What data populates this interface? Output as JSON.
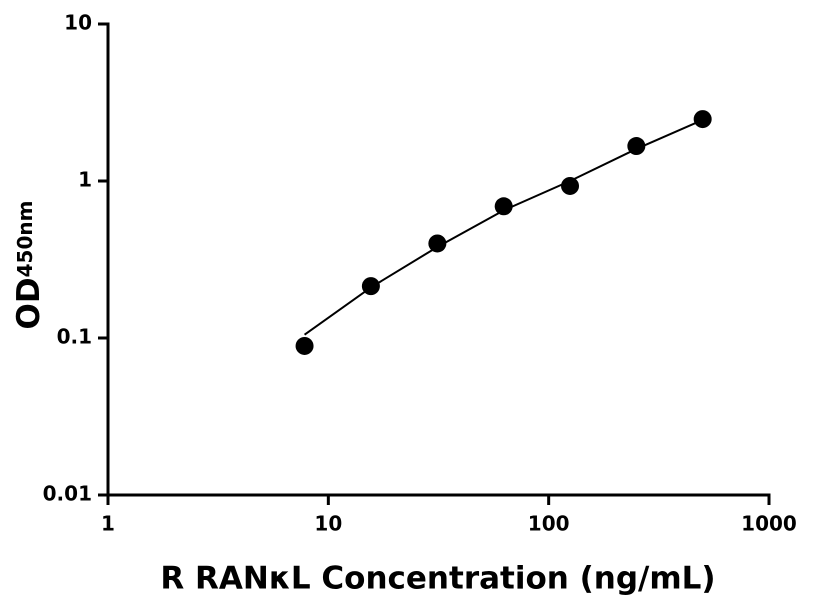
{
  "chart_data": {
    "type": "scatter",
    "x_label": "R RANκL Concentration (ng/mL)",
    "y_label": "OD",
    "y_label_sub": "450nm",
    "xscale": "log",
    "yscale": "log",
    "xlim": [
      1,
      1000
    ],
    "xticks": [
      1,
      10,
      100,
      1000
    ],
    "ylim": [
      0.01,
      10
    ],
    "yticks": [
      0.01,
      0.1,
      1,
      10
    ],
    "color": "#000000",
    "x": [
      7.8,
      15.6,
      31.25,
      62.5,
      125,
      250,
      500
    ],
    "values": [
      0.089,
      0.214,
      0.4,
      0.69,
      0.93,
      1.67,
      2.48
    ],
    "fit": {
      "x": [
        7.8,
        15.6,
        31.25,
        62.5,
        125,
        250,
        500
      ],
      "values": [
        0.105,
        0.21,
        0.38,
        0.65,
        1.0,
        1.6,
        2.45
      ]
    }
  }
}
